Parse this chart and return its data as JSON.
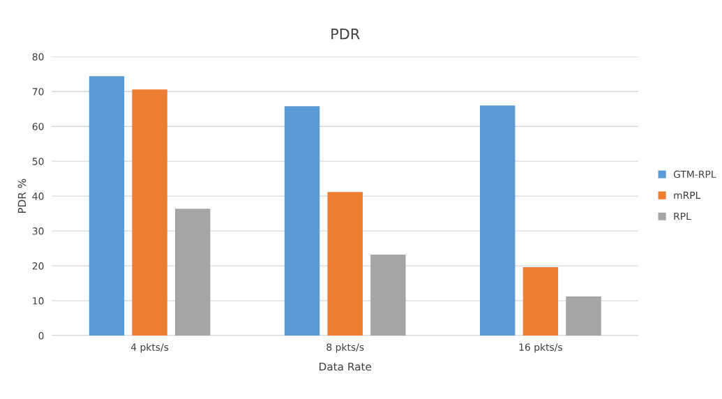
{
  "chart_data": {
    "type": "bar",
    "title": "PDR",
    "xlabel": "Data Rate",
    "ylabel": "PDR %",
    "categories": [
      "4 pkts/s",
      "8 pkts/s",
      "16 pkts/s"
    ],
    "series": [
      {
        "name": "GTM-RPL",
        "color": "#5b9bd5",
        "values": [
          74.4,
          65.8,
          66.0
        ]
      },
      {
        "name": "mRPL",
        "color": "#ed7d31",
        "values": [
          70.6,
          41.2,
          19.6
        ]
      },
      {
        "name": "RPL",
        "color": "#a5a5a5",
        "values": [
          36.4,
          23.2,
          11.2
        ]
      }
    ],
    "ylim": [
      0,
      80
    ],
    "yticks": [
      0,
      10,
      20,
      30,
      40,
      50,
      60,
      70,
      80
    ],
    "grid": "y",
    "legend": "right"
  }
}
